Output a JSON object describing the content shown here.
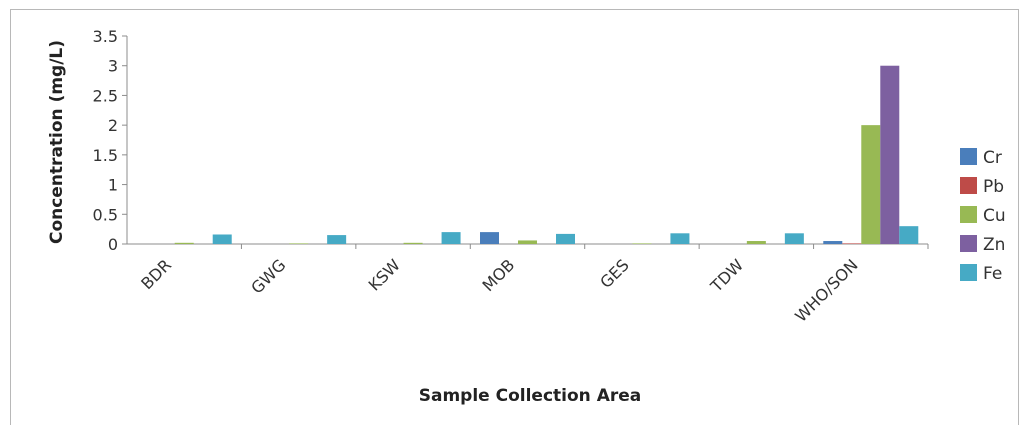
{
  "chart_data": {
    "type": "bar",
    "title": "",
    "xlabel": "Sample Collection Area",
    "ylabel": "Concentration (mg/L)",
    "ylim": [
      0,
      3.5
    ],
    "yticks": [
      "0",
      "0.5",
      "1",
      "1.5",
      "2",
      "2.5",
      "3",
      "3.5"
    ],
    "grid": false,
    "legend_position": "right",
    "categories": [
      "BDR",
      "GWG",
      "KSW",
      "MOB",
      "GES",
      "TDW",
      "WHO/SON"
    ],
    "series": [
      {
        "name": "Cr",
        "color": "#4a7ebb",
        "values": [
          0,
          0,
          0,
          0.2,
          0,
          0,
          0.05
        ]
      },
      {
        "name": "Pb",
        "color": "#be4b48",
        "values": [
          0,
          0,
          0,
          0,
          0,
          0,
          0.01
        ]
      },
      {
        "name": "Cu",
        "color": "#98b954",
        "values": [
          0.02,
          0.01,
          0.02,
          0.06,
          0.01,
          0.05,
          2
        ]
      },
      {
        "name": "Zn",
        "color": "#7d60a0",
        "values": [
          0,
          0,
          0,
          0,
          0,
          0,
          3
        ]
      },
      {
        "name": "Fe",
        "color": "#46aac5",
        "values": [
          0.16,
          0.15,
          0.2,
          0.17,
          0.18,
          0.18,
          0.3
        ]
      }
    ]
  }
}
